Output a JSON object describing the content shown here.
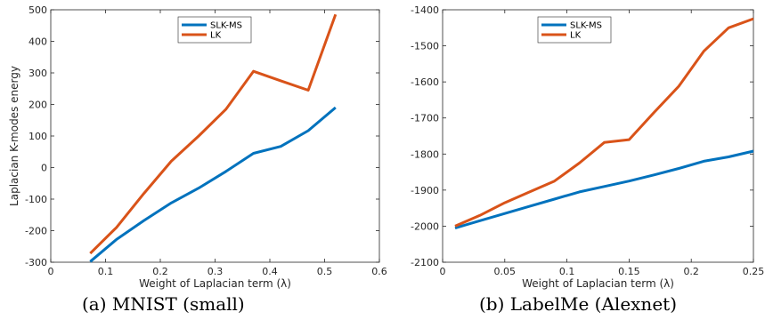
{
  "colors": {
    "slk_ms": "#0072BD",
    "lk": "#D95319",
    "axis": "#262626"
  },
  "chart_data": [
    {
      "type": "line",
      "caption": "(a) MNIST (small)",
      "xlabel": "Weight of Laplacian term (λ)",
      "ylabel": "Laplacian K-modes energy",
      "xlim": [
        0,
        0.6
      ],
      "ylim": [
        -300,
        500
      ],
      "xticks": [
        0,
        0.1,
        0.2,
        0.3,
        0.4,
        0.5,
        0.6
      ],
      "yticks": [
        -300,
        -200,
        -100,
        0,
        100,
        200,
        300,
        400,
        500
      ],
      "xtick_labels": [
        "0",
        "0.1",
        "0.2",
        "0.3",
        "0.4",
        "0.5",
        "0.6"
      ],
      "ytick_labels": [
        "-300",
        "-200",
        "-100",
        "0",
        "100",
        "200",
        "300",
        "400",
        "500"
      ],
      "grid": false,
      "legend_position": "top-center",
      "series": [
        {
          "name": "SLK-MS",
          "color_key": "slk_ms",
          "x": [
            0.072,
            0.12,
            0.17,
            0.22,
            0.27,
            0.32,
            0.37,
            0.42,
            0.47,
            0.52
          ],
          "y": [
            -298,
            -228,
            -168,
            -112,
            -65,
            -12,
            45,
            67,
            117,
            190
          ]
        },
        {
          "name": "LK",
          "color_key": "lk",
          "x": [
            0.072,
            0.12,
            0.17,
            0.22,
            0.27,
            0.32,
            0.37,
            0.42,
            0.47,
            0.52
          ],
          "y": [
            -272,
            -190,
            -82,
            20,
            100,
            185,
            305,
            275,
            245,
            485
          ]
        }
      ]
    },
    {
      "type": "line",
      "caption": "(b) LabelMe (Alexnet)",
      "xlabel": "Weight of Laplacian term (λ)",
      "ylabel": "",
      "xlim": [
        0,
        0.25
      ],
      "ylim": [
        -2100,
        -1400
      ],
      "xticks": [
        0,
        0.05,
        0.1,
        0.15,
        0.2,
        0.25
      ],
      "yticks": [
        -2100,
        -2000,
        -1900,
        -1800,
        -1700,
        -1600,
        -1500,
        -1400
      ],
      "xtick_labels": [
        "0",
        "0.05",
        "0.1",
        "0.15",
        "0.2",
        "0.25"
      ],
      "ytick_labels": [
        "-2100",
        "-2000",
        "-1900",
        "-1800",
        "-1700",
        "-1600",
        "-1500",
        "-1400"
      ],
      "grid": false,
      "legend_position": "top-left",
      "series": [
        {
          "name": "SLK-MS",
          "color_key": "slk_ms",
          "x": [
            0.01,
            0.03,
            0.05,
            0.07,
            0.09,
            0.11,
            0.13,
            0.15,
            0.17,
            0.19,
            0.21,
            0.23,
            0.25
          ],
          "y": [
            -2005,
            -1985,
            -1965,
            -1945,
            -1925,
            -1905,
            -1890,
            -1875,
            -1858,
            -1840,
            -1820,
            -1808,
            -1792
          ]
        },
        {
          "name": "LK",
          "color_key": "lk",
          "x": [
            0.01,
            0.03,
            0.05,
            0.07,
            0.09,
            0.11,
            0.13,
            0.15,
            0.17,
            0.19,
            0.21,
            0.23,
            0.25
          ],
          "y": [
            -2000,
            -1970,
            -1935,
            -1905,
            -1875,
            -1825,
            -1768,
            -1760,
            -1685,
            -1612,
            -1515,
            -1450,
            -1425
          ]
        }
      ]
    }
  ]
}
